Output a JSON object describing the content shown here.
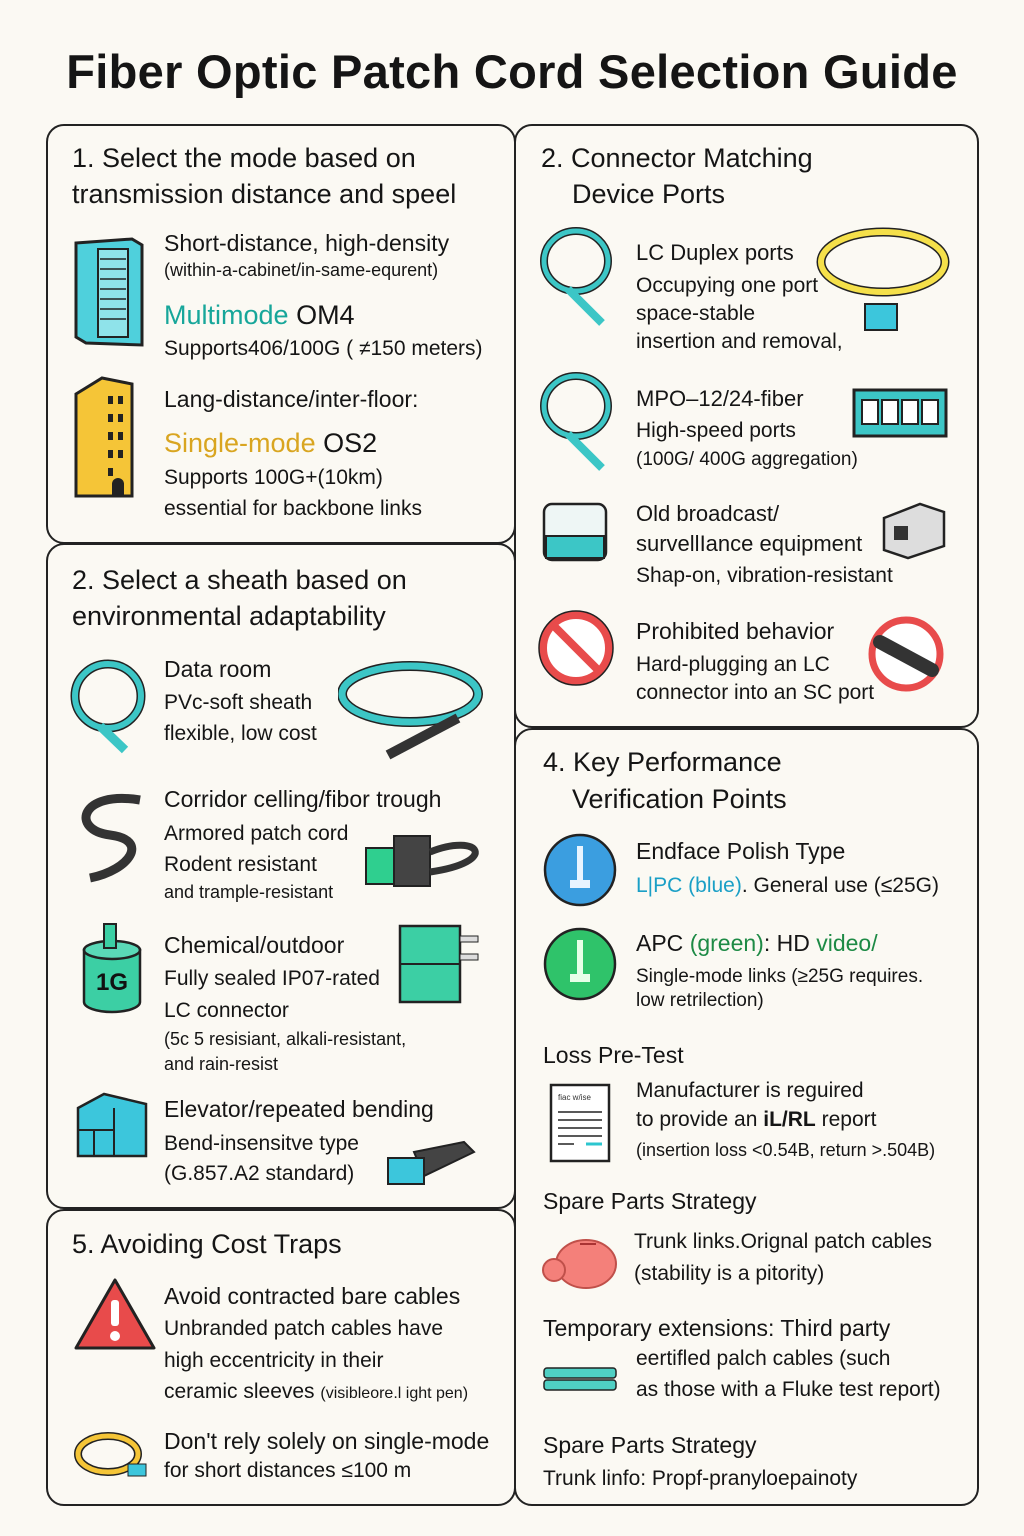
{
  "title": "Fiber Optic Patch Cord Selection Guide",
  "colors": {
    "teal": "#17a69a",
    "gold": "#d9a520",
    "green": "#1d8a45",
    "cyan": "#4fd0dc",
    "yellow": "#f5c537",
    "red": "#e84b4b"
  },
  "s1": {
    "heading_1": "1. Select the mode based on",
    "heading_2": "transmission distance and speel",
    "a_title": "Short-distance, high-density",
    "a_sub": "(within-a-cabinet/in-same-equrent)",
    "a_mode": "Multimode",
    "a_mode2": "OM4",
    "a_desc": "Supports406/100G ( ≠150 meters)",
    "b_title": "Lang-distance/inter-floor:",
    "b_mode": "Single-mode",
    "b_mode2": "OS2",
    "b_desc1": "Supports 100G+(10km)",
    "b_desc2": "essential for backbone links"
  },
  "s2l": {
    "heading_1": "2. Select a sheath based on",
    "heading_2": "environmental adaptability",
    "items": [
      {
        "title": "Data room",
        "lines": [
          "PVc-soft sheath",
          "flexible, low cost"
        ]
      },
      {
        "title": "Corridor celling/fibor trough",
        "lines": [
          "Armored patch cord",
          "Rodent resistant",
          "and trample-resistant"
        ]
      },
      {
        "title": "Chemical/outdoor",
        "lines": [
          "Fully sealed IP07-rated",
          "LC connector",
          "(5c 5 resisiant, alkali-resistant,",
          "and rain-resist"
        ],
        "icon_label": "1G"
      },
      {
        "title": "Elevator/repeated bending",
        "lines": [
          "Bend-insensitve type",
          "(G.857.A2 standard)"
        ]
      }
    ]
  },
  "s5": {
    "heading": "5. Avoiding Cost Traps",
    "a_title": "Avoid contracted bare cables",
    "a_lines": [
      "Unbranded patch cables have",
      "high eccentricity in their",
      "ceramic sleeves"
    ],
    "a_small": "(visibleore.l ight pen)",
    "b_title": "Don't rely solely on single-mode",
    "b_line": "for short distances ≤100 m"
  },
  "s2r": {
    "heading_1": "2. Connector Matching",
    "heading_2": "Device Ports",
    "items": [
      {
        "title": "LC Duplex ports",
        "lines": [
          "Occupying one port",
          "space-stable",
          "insertion and removal,"
        ]
      },
      {
        "title": "MPO–12/24-fiber",
        "lines": [
          "High-speed ports",
          "(100G/ 400G aggregation)"
        ]
      },
      {
        "title": "Old broadcast/",
        "title2": "survellIance equipment",
        "lines": [
          "Shap-on, vibration-resistant"
        ]
      },
      {
        "title": "Prohibited behavior",
        "lines": [
          "Hard-plugging an LC",
          "connector into an SC port"
        ]
      }
    ]
  },
  "s4": {
    "heading_1": "4. Key Performance",
    "heading_2": "Verification Points",
    "polish_title": "Endface Polish Type",
    "upc": "L|PC",
    "upc_color": "(blue)",
    "upc_rest": ". General use (≤25G)",
    "apc": "APC",
    "apc_color": "(green)",
    "apc_rest": ": HD",
    "apc_video": "video/",
    "apc_l1": "Single-mode links (≥25G requires.",
    "apc_l2": "low retrilection)",
    "loss_heading": "Loss Pre-Test",
    "doc_label": "fiac w/ise",
    "loss_l1": "Manufacturer is reguired",
    "loss_l2a": "to provide an ",
    "loss_l2b": "iL/RL",
    "loss_l2c": " report",
    "loss_l3": "(insertion loss <0.54B, return >.504B)",
    "spare_heading": "Spare Parts Strategy",
    "spare_l1a": "Trunk",
    "spare_l1b": " links.Orignal patch cables",
    "spare_l2": "(stability is a pitority)",
    "temp_a": "Temporary extensions:",
    "temp_b": " Third party",
    "temp_l2": "eertifled palch cables (such",
    "temp_l3": "as those with a Fluke test report)",
    "spare2_heading": "Spare Parts Strategy",
    "spare2_line": "Trunk linfo:  Propf-pranyloepainoty"
  }
}
